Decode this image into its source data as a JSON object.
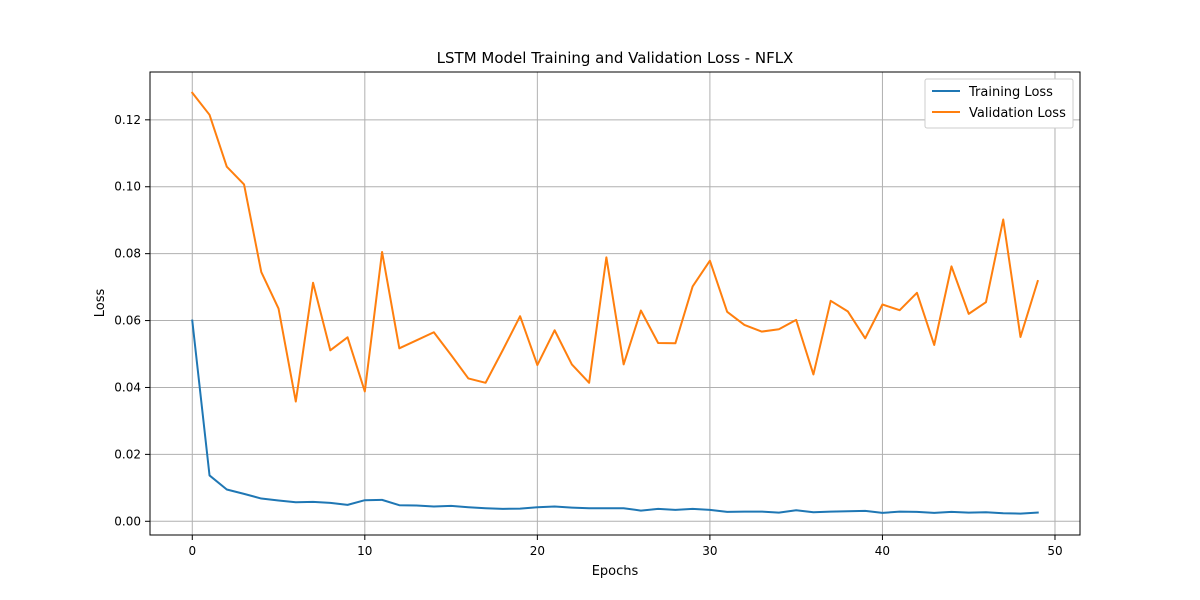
{
  "chart_data": {
    "type": "line",
    "title": "LSTM Model Training and Validation Loss - NFLX",
    "xlabel": "Epochs",
    "ylabel": "Loss",
    "xlim": [
      -2.45,
      51.45
    ],
    "ylim": [
      -0.0041,
      0.1343
    ],
    "xticks": [
      0,
      10,
      20,
      30,
      40,
      50
    ],
    "yticks": [
      0.0,
      0.02,
      0.04,
      0.06,
      0.08,
      0.1,
      0.12
    ],
    "ytick_labels": [
      "0.00",
      "0.02",
      "0.04",
      "0.06",
      "0.08",
      "0.10",
      "0.12"
    ],
    "grid": true,
    "legend_position": "top-right",
    "x": [
      0,
      1,
      2,
      3,
      4,
      5,
      6,
      7,
      8,
      9,
      10,
      11,
      12,
      13,
      14,
      15,
      16,
      17,
      18,
      19,
      20,
      21,
      22,
      23,
      24,
      25,
      26,
      27,
      28,
      29,
      30,
      31,
      32,
      33,
      34,
      35,
      36,
      37,
      38,
      39,
      40,
      41,
      42,
      43,
      44,
      45,
      46,
      47,
      48,
      49
    ],
    "series": [
      {
        "name": "Training Loss",
        "color": "#1f77b4",
        "values": [
          0.06,
          0.0137,
          0.0095,
          0.0082,
          0.0068,
          0.0062,
          0.0057,
          0.0058,
          0.0055,
          0.0049,
          0.0063,
          0.0064,
          0.0048,
          0.0047,
          0.0044,
          0.0046,
          0.0042,
          0.0039,
          0.0037,
          0.0038,
          0.0042,
          0.0044,
          0.0041,
          0.0039,
          0.0039,
          0.0039,
          0.0032,
          0.0037,
          0.0034,
          0.0037,
          0.0034,
          0.0028,
          0.0029,
          0.0029,
          0.0026,
          0.0033,
          0.0027,
          0.0029,
          0.003,
          0.0031,
          0.0025,
          0.0029,
          0.0028,
          0.0025,
          0.0028,
          0.0026,
          0.0027,
          0.0024,
          0.0023,
          0.0026
        ]
      },
      {
        "name": "Validation Loss",
        "color": "#ff7f0e",
        "values": [
          0.1281,
          0.1215,
          0.106,
          0.1007,
          0.0745,
          0.0636,
          0.0358,
          0.0713,
          0.0511,
          0.055,
          0.0388,
          0.0805,
          0.0517,
          0.0541,
          0.0565,
          0.0497,
          0.0427,
          0.0414,
          0.0512,
          0.0613,
          0.0467,
          0.0571,
          0.0469,
          0.0414,
          0.0789,
          0.0469,
          0.063,
          0.0533,
          0.0532,
          0.0702,
          0.0779,
          0.0626,
          0.0587,
          0.0567,
          0.0574,
          0.0602,
          0.0439,
          0.0659,
          0.0627,
          0.0547,
          0.0648,
          0.0631,
          0.0683,
          0.0527,
          0.0762,
          0.062,
          0.0655,
          0.0902,
          0.0551,
          0.0718
        ]
      }
    ]
  }
}
